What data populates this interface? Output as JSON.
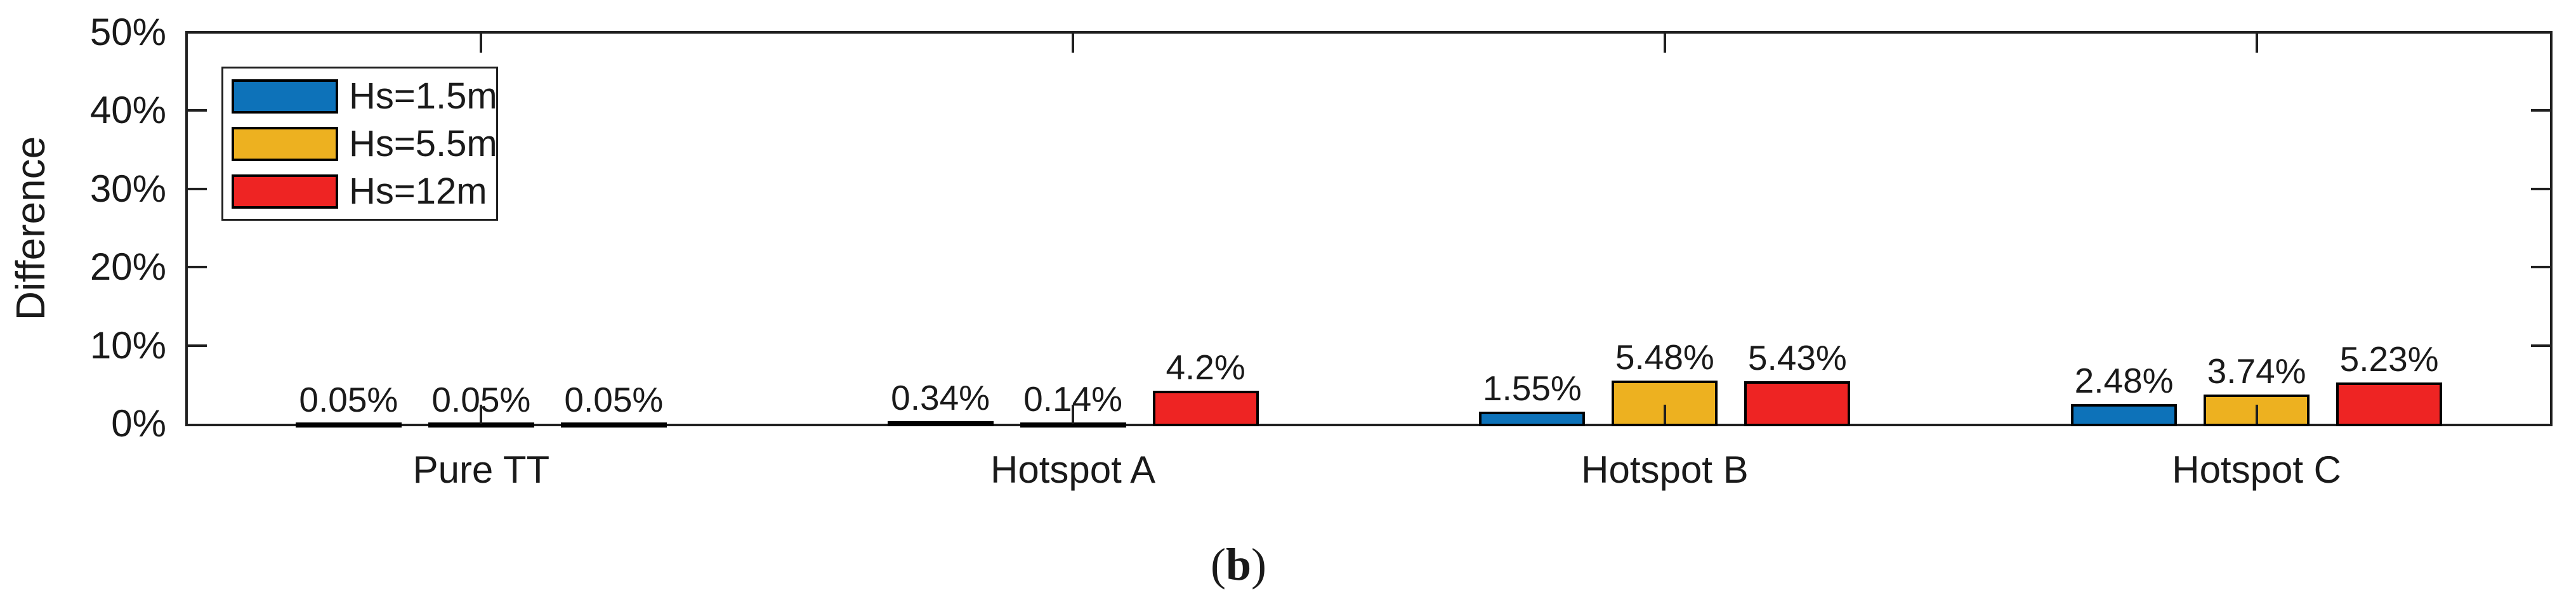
{
  "figure": {
    "caption": {
      "open": "(",
      "letter": "b",
      "close": ")"
    }
  },
  "chart_data": {
    "type": "bar",
    "title": "",
    "xlabel": "",
    "ylabel": "Difference",
    "categories": [
      "Pure TT",
      "Hotspot A",
      "Hotspot B",
      "Hotspot C"
    ],
    "series": [
      {
        "name": "Hs=1.5m",
        "color": "#0D72B9",
        "values": [
          0.05,
          0.34,
          1.55,
          2.48
        ],
        "value_labels": [
          "0.05%",
          "0.34%",
          "1.55%",
          "2.48%"
        ]
      },
      {
        "name": "Hs=5.5m",
        "color": "#EDB120",
        "values": [
          0.05,
          0.14,
          5.48,
          3.74
        ],
        "value_labels": [
          "0.05%",
          "0.14%",
          "5.48%",
          "3.74%"
        ]
      },
      {
        "name": "Hs=12m",
        "color": "#EE2423",
        "values": [
          0.05,
          4.2,
          5.43,
          5.23
        ],
        "value_labels": [
          "0.05%",
          "4.2%",
          "5.43%",
          "5.23%"
        ]
      }
    ],
    "y_ticks": [
      "0%",
      "10%",
      "20%",
      "30%",
      "40%",
      "50%"
    ],
    "ylim": [
      0,
      50
    ],
    "grid": false,
    "legend_position": "top-left",
    "axis_color": "#1f1f1f",
    "text_color": "#1a1a1a"
  }
}
